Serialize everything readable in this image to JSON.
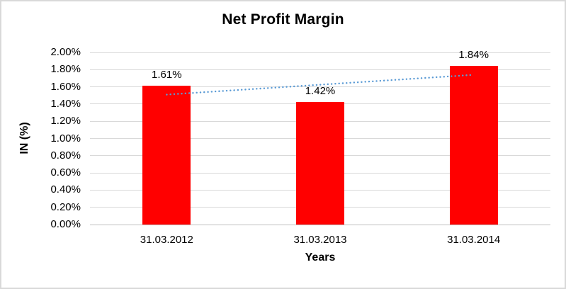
{
  "chart_data": {
    "type": "bar",
    "title": "Net Profit Margin",
    "xlabel": "Years",
    "ylabel": "IN (%)",
    "categories": [
      "31.03.2012",
      "31.03.2013",
      "31.03.2014"
    ],
    "values": [
      1.61,
      1.42,
      1.84
    ],
    "data_labels": [
      "1.61%",
      "1.42%",
      "1.84%"
    ],
    "ylim": [
      0,
      2
    ],
    "y_ticks": [
      {
        "value": 0.0,
        "label": "0.00%"
      },
      {
        "value": 0.2,
        "label": "0.20%"
      },
      {
        "value": 0.4,
        "label": "0.40%"
      },
      {
        "value": 0.6,
        "label": "0.60%"
      },
      {
        "value": 0.8,
        "label": "0.80%"
      },
      {
        "value": 1.0,
        "label": "1.00%"
      },
      {
        "value": 1.2,
        "label": "1.20%"
      },
      {
        "value": 1.4,
        "label": "1.40%"
      },
      {
        "value": 1.6,
        "label": "1.60%"
      },
      {
        "value": 1.8,
        "label": "1.80%"
      },
      {
        "value": 2.0,
        "label": "2.00%"
      }
    ],
    "grid": true,
    "legend": "none",
    "trendline": {
      "type": "linear",
      "style": "dotted",
      "start_value": 1.51,
      "end_value": 1.74
    },
    "colors": {
      "bar": "#FF0000",
      "trendline": "#5B9BD5",
      "gridline": "#D9D9D9",
      "axis_line": "#BFBFBF",
      "text": "#000000",
      "frame_border": "#D9D9D9"
    }
  }
}
